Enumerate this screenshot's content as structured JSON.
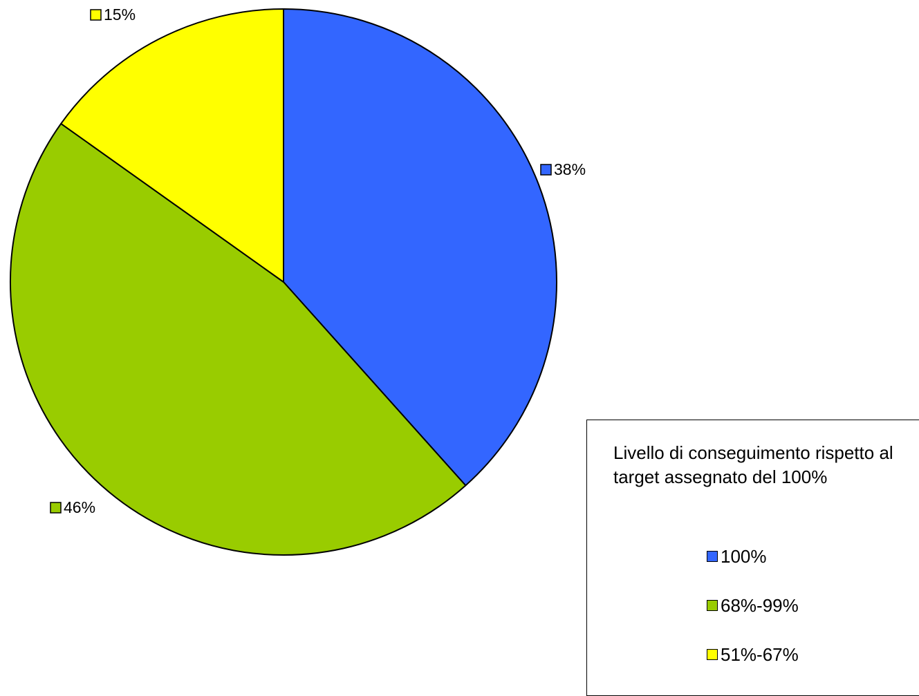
{
  "chart_data": {
    "type": "pie",
    "title": "",
    "slices": [
      {
        "label": "100%",
        "value": 38,
        "data_label": "38%",
        "color": "#3366FF"
      },
      {
        "label": "68%-99%",
        "value": 46,
        "data_label": "46%",
        "color": "#99CC00"
      },
      {
        "label": "51%-67%",
        "value": 15,
        "data_label": "15%",
        "color": "#FFFF00"
      }
    ],
    "start_angle_deg": 0,
    "direction": "clockwise",
    "legend": {
      "title": "Livello di conseguimento rispetto al target assegnato del 100%",
      "placement": "bottom-right"
    },
    "border_color": "#000000"
  }
}
